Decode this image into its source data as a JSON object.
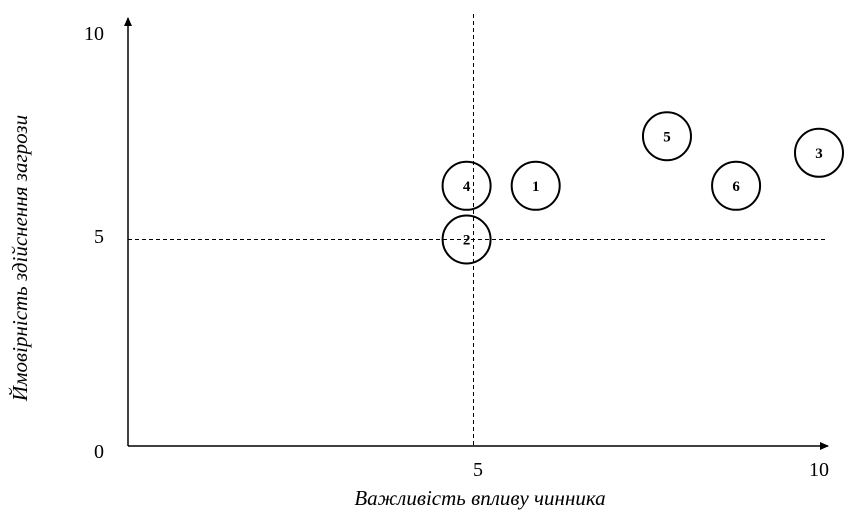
{
  "chart_data": {
    "type": "scatter",
    "title": "",
    "xlabel": "Важливість впливу чинника",
    "ylabel": "Ймовірність здійснення загрози",
    "xlim": [
      0,
      10
    ],
    "ylim": [
      0,
      10
    ],
    "x_ticks": [
      "5",
      "10"
    ],
    "y_ticks": [
      "0",
      "5",
      "10"
    ],
    "reference_lines": {
      "x": 5,
      "y": 5
    },
    "grid": false,
    "points": [
      {
        "label": "1",
        "x": 5.9,
        "y": 6.3
      },
      {
        "label": "2",
        "x": 4.9,
        "y": 5.0
      },
      {
        "label": "3",
        "x": 10.0,
        "y": 7.1
      },
      {
        "label": "4",
        "x": 4.9,
        "y": 6.3
      },
      {
        "label": "5",
        "x": 7.8,
        "y": 7.5
      },
      {
        "label": "6",
        "x": 8.8,
        "y": 6.3
      }
    ]
  }
}
